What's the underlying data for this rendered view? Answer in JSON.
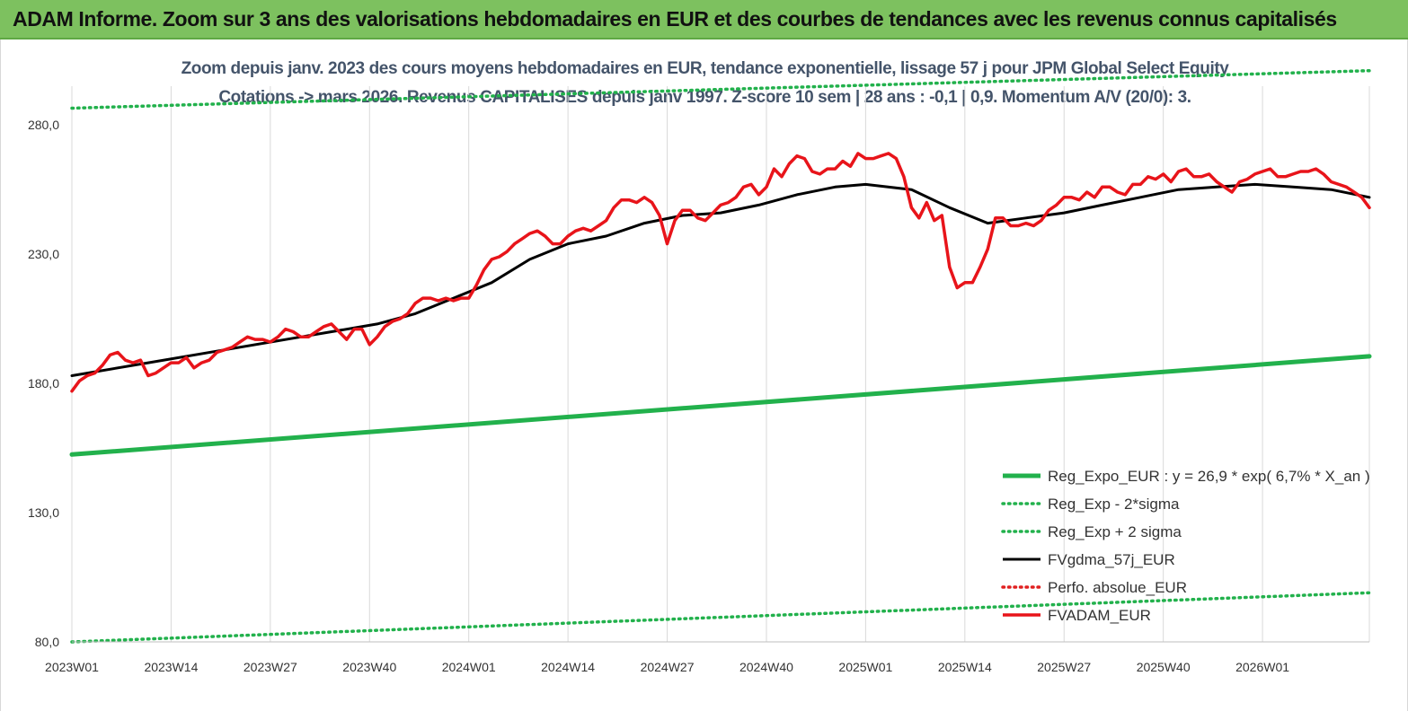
{
  "header": {
    "banner_title": "ADAM Informe. Zoom sur 3 ans des valorisations hebdomadaires en EUR et des courbes de tendances avec les revenus connus capitalisés"
  },
  "chart_data": {
    "type": "line",
    "title_line1": "Zoom depuis janv. 2023 des cours moyens hebdomadaires en EUR, tendance exponentielle, lissage 57 j pour JPM Global Select Equity",
    "title_line2": "Cotations -> mars 2026. Revenus CAPITALISES depuis janv 1997. Z-score 10 sem | 28 ans : -0,1 | 0,9. Momentum A/V (20/0): 3.",
    "x_tick_labels": [
      "2023W01",
      "2023W14",
      "2023W27",
      "2023W40",
      "2024W01",
      "2024W14",
      "2024W27",
      "2024W40",
      "2025W01",
      "2025W14",
      "2025W27",
      "2025W40",
      "2026W01"
    ],
    "x_tick_weeks": [
      0,
      13,
      26,
      39,
      52,
      65,
      78,
      91,
      104,
      117,
      130,
      143,
      156
    ],
    "x_range": [
      0,
      170
    ],
    "y_ticks": [
      80,
      130,
      180,
      230,
      280
    ],
    "y_tick_labels": [
      "80,0",
      "130,0",
      "180,0",
      "230,0",
      "280,0"
    ],
    "ylim": [
      80,
      295
    ],
    "grid": "vertical",
    "legend_position": "bottom-right",
    "series": [
      {
        "name": "Reg_Expo_EUR : y = 26,9 * exp( 6,7% *  X_an )",
        "color": "#22b14c",
        "style": "solid",
        "x": [
          0,
          170
        ],
        "y": [
          152.5,
          190.5
        ]
      },
      {
        "name": "Reg_Exp - 2*sigma",
        "color": "#22b14c",
        "style": "dotted",
        "x": [
          0,
          170
        ],
        "y": [
          80,
          99
        ]
      },
      {
        "name": "Reg_Exp + 2 sigma",
        "color": "#22b14c",
        "style": "dotted",
        "x": [
          0,
          170
        ],
        "y": [
          286.5,
          301
        ]
      },
      {
        "name": "FVgdma_57j_EUR",
        "color": "#000000",
        "style": "solid",
        "x": [
          0,
          10,
          20,
          30,
          40,
          45,
          50,
          55,
          60,
          65,
          70,
          75,
          80,
          85,
          90,
          95,
          100,
          104,
          110,
          115,
          120,
          125,
          130,
          135,
          140,
          145,
          150,
          155,
          160,
          165,
          170
        ],
        "y": [
          183,
          188,
          193,
          198,
          203,
          207,
          213,
          219,
          228,
          234,
          237,
          242,
          245,
          246,
          249,
          253,
          256,
          257,
          255,
          248,
          242,
          244,
          246,
          249,
          252,
          255,
          256,
          257,
          256,
          255,
          252
        ]
      },
      {
        "name": "Perfo. absolue_EUR",
        "color": "#e02020",
        "style": "dotted",
        "x": [],
        "y": []
      },
      {
        "name": "FVADAM_EUR",
        "color": "#e8141a",
        "style": "solid",
        "x": [
          0,
          1,
          2,
          3,
          4,
          5,
          6,
          7,
          8,
          9,
          10,
          11,
          12,
          13,
          14,
          15,
          16,
          17,
          18,
          19,
          20,
          21,
          22,
          23,
          24,
          25,
          26,
          27,
          28,
          29,
          30,
          31,
          32,
          33,
          34,
          35,
          36,
          37,
          38,
          39,
          40,
          41,
          42,
          43,
          44,
          45,
          46,
          47,
          48,
          49,
          50,
          51,
          52,
          53,
          54,
          55,
          56,
          57,
          58,
          59,
          60,
          61,
          62,
          63,
          64,
          65,
          66,
          67,
          68,
          69,
          70,
          71,
          72,
          73,
          74,
          75,
          76,
          77,
          78,
          79,
          80,
          81,
          82,
          83,
          84,
          85,
          86,
          87,
          88,
          89,
          90,
          91,
          92,
          93,
          94,
          95,
          96,
          97,
          98,
          99,
          100,
          101,
          102,
          103,
          104,
          105,
          106,
          107,
          108,
          109,
          110,
          111,
          112,
          113,
          114,
          115,
          116,
          117,
          118,
          119,
          120,
          121,
          122,
          123,
          124,
          125,
          126,
          127,
          128,
          129,
          130,
          131,
          132,
          133,
          134,
          135,
          136,
          137,
          138,
          139,
          140,
          141,
          142,
          143,
          144,
          145,
          146,
          147,
          148,
          149,
          150,
          151,
          152,
          153,
          154,
          155,
          156,
          157,
          158,
          159,
          160,
          161,
          162,
          163,
          164,
          165,
          166,
          167,
          168,
          169,
          170
        ],
        "y": [
          177,
          181,
          183,
          184,
          187,
          191,
          192,
          189,
          188,
          189,
          183,
          184,
          186,
          188,
          188,
          190,
          186,
          188,
          189,
          192,
          193,
          194,
          196,
          198,
          197,
          197,
          196,
          198,
          201,
          200,
          198,
          198,
          200,
          202,
          203,
          200,
          197,
          201,
          201,
          195,
          198,
          202,
          204,
          205,
          207,
          211,
          213,
          213,
          212,
          213,
          212,
          213,
          213,
          218,
          224,
          228,
          229,
          231,
          234,
          236,
          238,
          239,
          237,
          234,
          234,
          237,
          239,
          240,
          239,
          241,
          243,
          248,
          251,
          251,
          250,
          252,
          250,
          245,
          234,
          243,
          247,
          247,
          244,
          243,
          246,
          249,
          250,
          252,
          256,
          257,
          253,
          256,
          263,
          260,
          265,
          268,
          267,
          262,
          261,
          263,
          263,
          266,
          264,
          269,
          267,
          267,
          268,
          269,
          267,
          260,
          248,
          244,
          250,
          243,
          245,
          225,
          217,
          219,
          219,
          225,
          232,
          244,
          244,
          241,
          241,
          242,
          241,
          243,
          247,
          249,
          252,
          252,
          251,
          254,
          252,
          256,
          256,
          254,
          253,
          257,
          257,
          260,
          259,
          261,
          258,
          262,
          263,
          260,
          260,
          261,
          258,
          256,
          254,
          258,
          259,
          261,
          262,
          263,
          260,
          260,
          261,
          262,
          262,
          263,
          261,
          258,
          257,
          256,
          254,
          252,
          248
        ]
      }
    ]
  }
}
